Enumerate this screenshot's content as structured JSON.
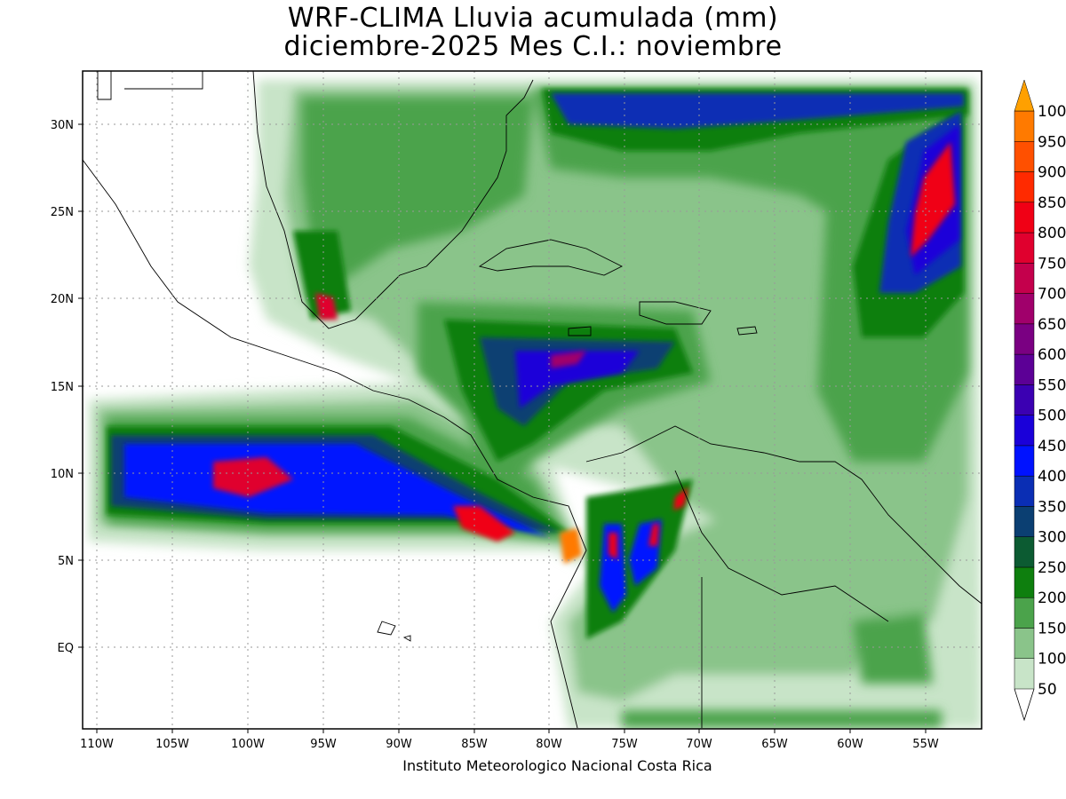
{
  "header": {
    "title_line1": "WRF-CLIMA Lluvia acumulada (mm)",
    "title_line2": "diciembre-2025 Mes C.I.: noviembre"
  },
  "footer": {
    "credit": "Instituto Meteorologico Nacional Costa Rica"
  },
  "axes": {
    "x_ticks": [
      "110W",
      "105W",
      "100W",
      "95W",
      "90W",
      "85W",
      "80W",
      "75W",
      "70W",
      "65W",
      "60W",
      "55W"
    ],
    "y_ticks": [
      "30N",
      "25N",
      "20N",
      "15N",
      "10N",
      "5N",
      "EQ"
    ]
  },
  "legend": {
    "levels": [
      "50",
      "100",
      "150",
      "200",
      "250",
      "300",
      "350",
      "400",
      "450",
      "500",
      "550",
      "600",
      "650",
      "700",
      "750",
      "800",
      "850",
      "900",
      "950",
      "100"
    ],
    "colors": [
      "#c8e4c8",
      "#8ac48a",
      "#4ba34b",
      "#0e7f0e",
      "#0c5b32",
      "#0b3f72",
      "#0a2eb4",
      "#0012ff",
      "#1a00d9",
      "#3b00b2",
      "#5c0096",
      "#7a0082",
      "#a0006b",
      "#c4004c",
      "#e0002e",
      "#f00015",
      "#ff2a00",
      "#ff5000",
      "#ff7a00",
      "#ffa000"
    ]
  }
}
